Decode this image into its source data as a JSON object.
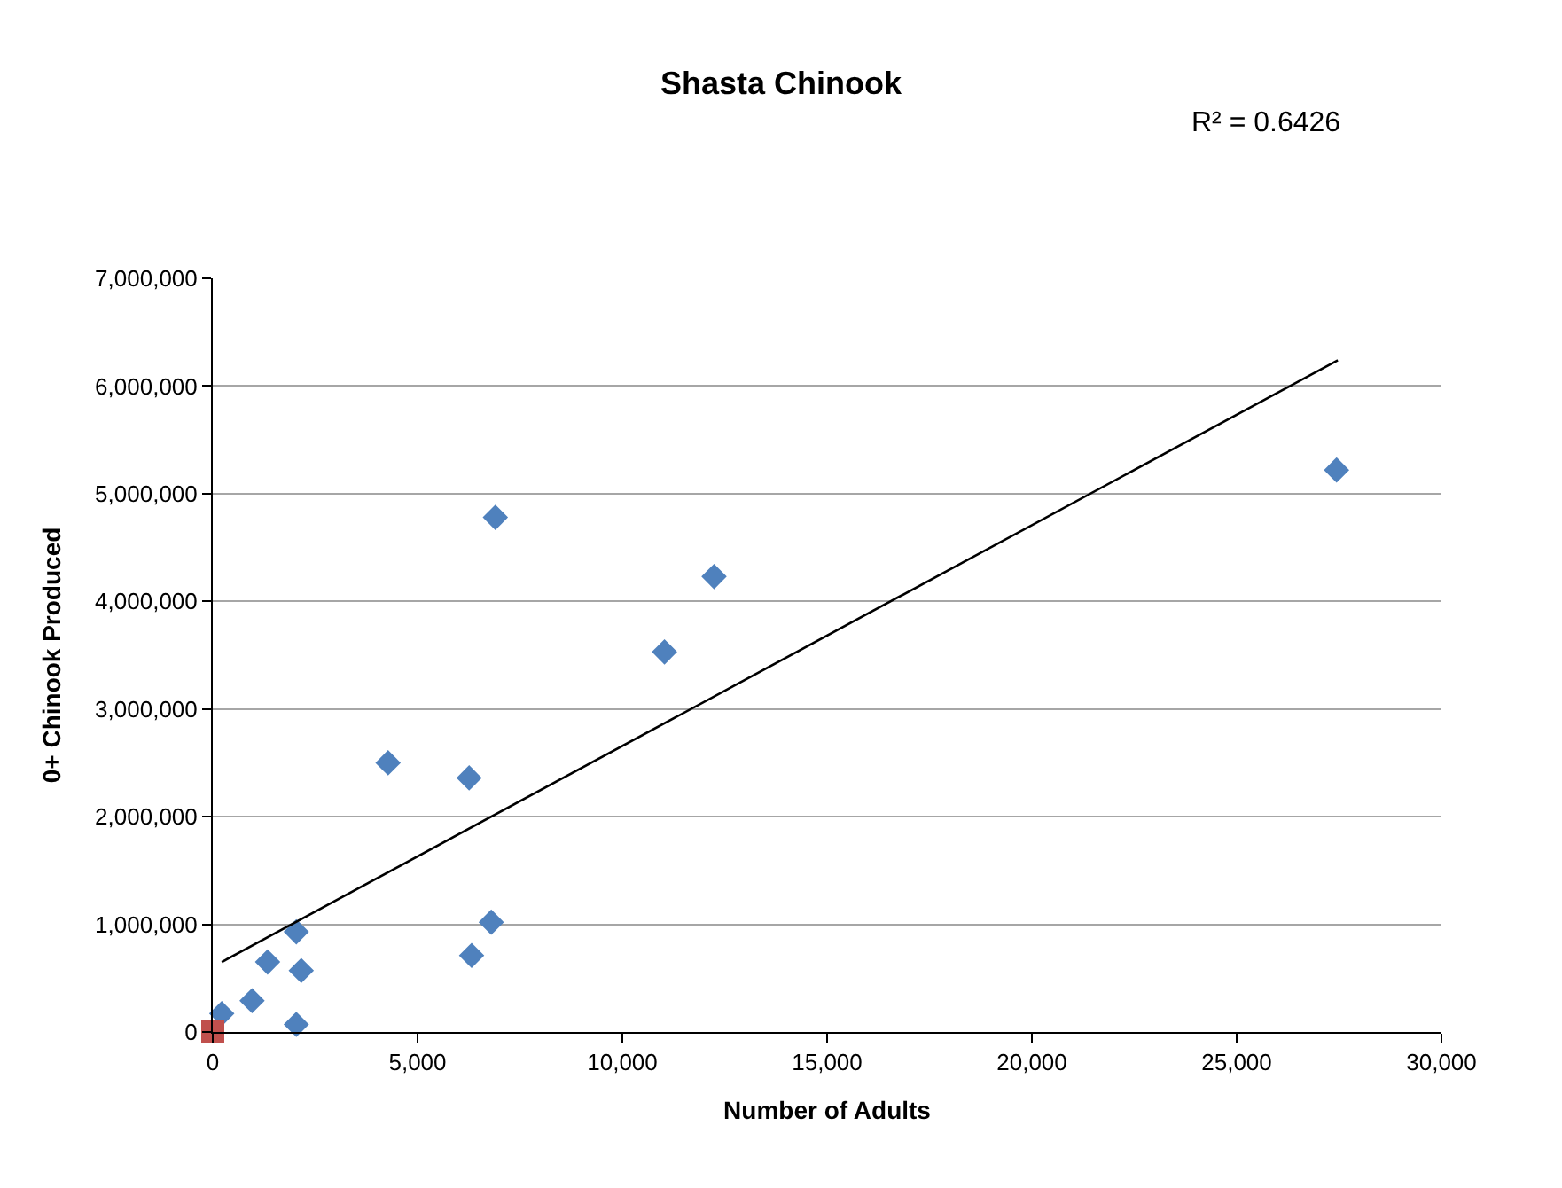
{
  "chart_data": {
    "type": "scatter",
    "title": "Shasta Chinook",
    "xlabel": "Number of Adults",
    "ylabel": "0+ Chinook Produced",
    "annotations": [
      "R² = 0.6426"
    ],
    "xlim": [
      0,
      30000
    ],
    "xticks": [
      {
        "value": 0,
        "label": "0"
      },
      {
        "value": 5000,
        "label": "5,000"
      },
      {
        "value": 10000,
        "label": "10,000"
      },
      {
        "value": 15000,
        "label": "15,000"
      },
      {
        "value": 20000,
        "label": "20,000"
      },
      {
        "value": 25000,
        "label": "25,000"
      },
      {
        "value": 30000,
        "label": "30,000"
      }
    ],
    "ylim": [
      0,
      7000000
    ],
    "yticks": [
      {
        "value": 0,
        "label": "0"
      },
      {
        "value": 1000000,
        "label": "1,000,000"
      },
      {
        "value": 2000000,
        "label": "2,000,000"
      },
      {
        "value": 3000000,
        "label": "3,000,000"
      },
      {
        "value": 4000000,
        "label": "4,000,000"
      },
      {
        "value": 5000000,
        "label": "5,000,000"
      },
      {
        "value": 6000000,
        "label": "6,000,000"
      },
      {
        "value": 7000000,
        "label": "7,000,000"
      }
    ],
    "grid": "y",
    "series": [
      {
        "marker": "diamond",
        "color": "#4f81bd",
        "x": [
          220,
          960,
          1340,
          2040,
          2160,
          2040,
          4280,
          6260,
          6900,
          6320,
          6800,
          11030,
          12240,
          27440
        ],
        "values": [
          170000,
          290000,
          650000,
          930000,
          570000,
          70000,
          2500000,
          2360000,
          4780000,
          710000,
          1020000,
          3530000,
          4230000,
          5220000
        ]
      },
      {
        "marker": "square",
        "color": "#c0504d",
        "x": [
          0
        ],
        "values": [
          0
        ]
      },
      {
        "type": "line",
        "marker": "none",
        "color": "#000000",
        "x": [
          220,
          27470
        ],
        "values": [
          650000,
          6240000
        ]
      }
    ]
  }
}
